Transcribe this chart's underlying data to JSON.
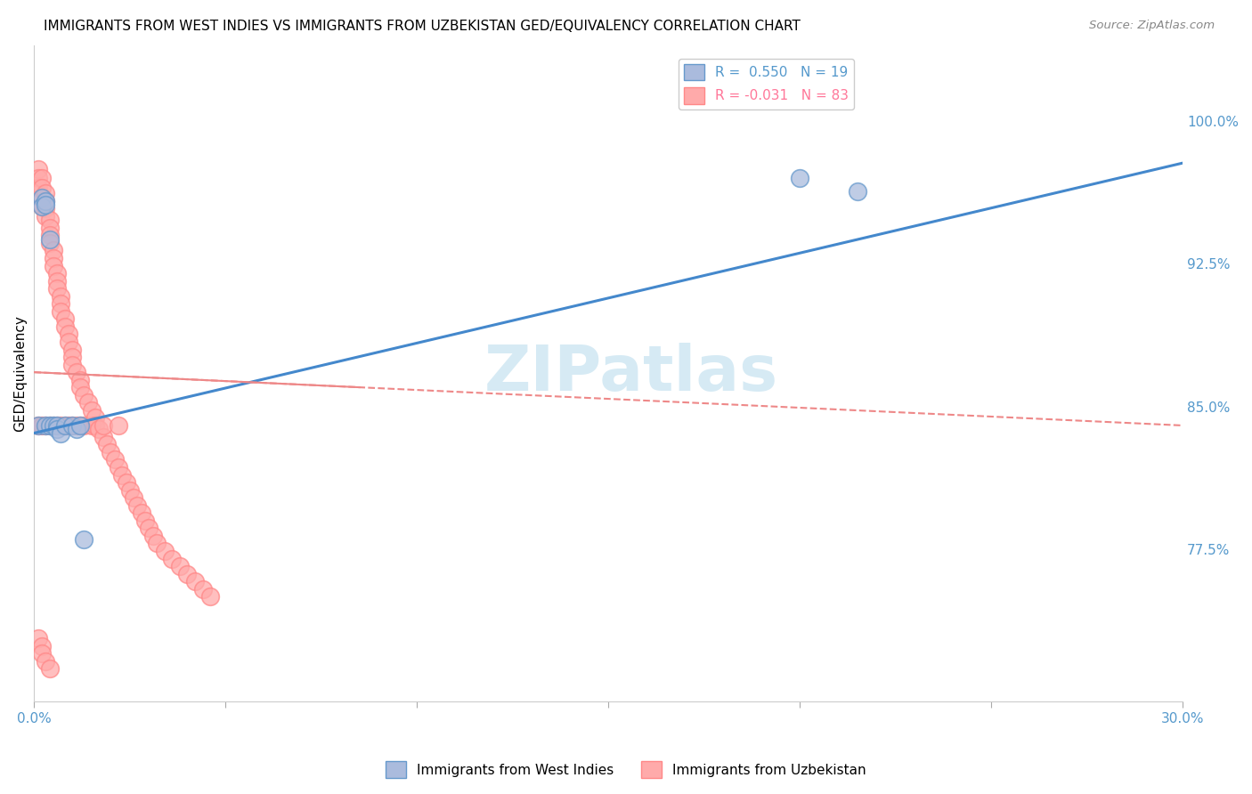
{
  "title": "IMMIGRANTS FROM WEST INDIES VS IMMIGRANTS FROM UZBEKISTAN GED/EQUIVALENCY CORRELATION CHART",
  "source": "Source: ZipAtlas.com",
  "ylabel": "GED/Equivalency",
  "xlim": [
    0.0,
    0.3
  ],
  "ylim": [
    0.695,
    1.04
  ],
  "yticks": [
    0.775,
    0.85,
    0.925,
    1.0
  ],
  "ytick_labels": [
    "77.5%",
    "85.0%",
    "92.5%",
    "100.0%"
  ],
  "xticks": [
    0.0,
    0.05,
    0.1,
    0.15,
    0.2,
    0.25,
    0.3
  ],
  "xtick_labels_show": [
    "0.0%",
    "",
    "",
    "",
    "",
    "",
    "30.0%"
  ],
  "legend1_label": "R =  0.550   N = 19",
  "legend2_label": "R = -0.031   N = 83",
  "series1_fill_color": "#AABBDD",
  "series2_fill_color": "#FFAAAA",
  "series1_edge_color": "#6699CC",
  "series2_edge_color": "#FF8888",
  "series1_line_color": "#4488CC",
  "series2_line_color": "#EE8888",
  "watermark": "ZIPatlas",
  "watermark_color": "#BBDDEE",
  "background_color": "#FFFFFF",
  "grid_color": "#DDDDDD",
  "right_axis_color": "#5599CC",
  "title_fontsize": 11,
  "axis_label_fontsize": 11,
  "tick_fontsize": 10,
  "wi_x": [
    0.001,
    0.002,
    0.002,
    0.003,
    0.003,
    0.003,
    0.004,
    0.004,
    0.005,
    0.006,
    0.006,
    0.007,
    0.008,
    0.01,
    0.011,
    0.012,
    0.013,
    0.2,
    0.215
  ],
  "wi_y": [
    0.84,
    0.96,
    0.955,
    0.958,
    0.956,
    0.84,
    0.938,
    0.84,
    0.84,
    0.84,
    0.838,
    0.836,
    0.84,
    0.84,
    0.838,
    0.84,
    0.78,
    0.97,
    0.963
  ],
  "uz_x": [
    0.001,
    0.001,
    0.001,
    0.001,
    0.002,
    0.002,
    0.002,
    0.002,
    0.002,
    0.003,
    0.003,
    0.003,
    0.003,
    0.003,
    0.004,
    0.004,
    0.004,
    0.004,
    0.004,
    0.005,
    0.005,
    0.005,
    0.005,
    0.006,
    0.006,
    0.006,
    0.006,
    0.007,
    0.007,
    0.007,
    0.007,
    0.008,
    0.008,
    0.008,
    0.009,
    0.009,
    0.009,
    0.01,
    0.01,
    0.01,
    0.01,
    0.011,
    0.011,
    0.012,
    0.012,
    0.012,
    0.013,
    0.013,
    0.014,
    0.015,
    0.015,
    0.016,
    0.016,
    0.017,
    0.018,
    0.018,
    0.019,
    0.02,
    0.021,
    0.022,
    0.022,
    0.023,
    0.024,
    0.025,
    0.026,
    0.027,
    0.028,
    0.029,
    0.03,
    0.031,
    0.032,
    0.034,
    0.036,
    0.038,
    0.04,
    0.042,
    0.044,
    0.046,
    0.001,
    0.002,
    0.002,
    0.003,
    0.004
  ],
  "uz_y": [
    0.975,
    0.97,
    0.965,
    0.84,
    0.97,
    0.965,
    0.96,
    0.955,
    0.84,
    0.962,
    0.958,
    0.954,
    0.95,
    0.84,
    0.948,
    0.944,
    0.94,
    0.936,
    0.84,
    0.932,
    0.928,
    0.924,
    0.84,
    0.92,
    0.916,
    0.912,
    0.84,
    0.908,
    0.904,
    0.9,
    0.84,
    0.896,
    0.892,
    0.84,
    0.888,
    0.884,
    0.84,
    0.88,
    0.876,
    0.872,
    0.84,
    0.868,
    0.84,
    0.864,
    0.86,
    0.84,
    0.856,
    0.84,
    0.852,
    0.848,
    0.84,
    0.844,
    0.84,
    0.838,
    0.834,
    0.84,
    0.83,
    0.826,
    0.822,
    0.818,
    0.84,
    0.814,
    0.81,
    0.806,
    0.802,
    0.798,
    0.794,
    0.79,
    0.786,
    0.782,
    0.778,
    0.774,
    0.77,
    0.766,
    0.762,
    0.758,
    0.754,
    0.75,
    0.728,
    0.724,
    0.72,
    0.716,
    0.712
  ]
}
